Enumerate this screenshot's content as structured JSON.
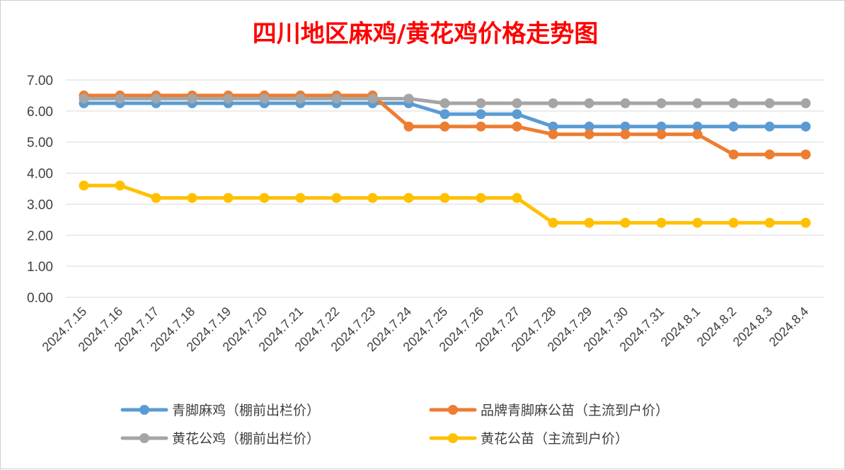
{
  "chart_data": {
    "type": "line",
    "title": "四川地区麻鸡/黄花鸡价格走势图",
    "xlabel": "",
    "ylabel": "",
    "ylim": [
      0,
      7
    ],
    "yticks": [
      "0.00",
      "1.00",
      "2.00",
      "3.00",
      "4.00",
      "5.00",
      "6.00",
      "7.00"
    ],
    "grid": true,
    "legend_position": "bottom",
    "categories": [
      "2024.7.15",
      "2024.7.16",
      "2024.7.17",
      "2024.7.18",
      "2024.7.19",
      "2024.7.20",
      "2024.7.21",
      "2024.7.22",
      "2024.7.23",
      "2024.7.24",
      "2024.7.25",
      "2024.7.26",
      "2024.7.27",
      "2024.7.28",
      "2024.7.29",
      "2024.7.30",
      "2024.7.31",
      "2024.8.1",
      "2024.8.2",
      "2024.8.3",
      "2024.8.4"
    ],
    "series": [
      {
        "name": "青脚麻鸡（棚前出栏价）",
        "color": "#5b9bd5",
        "values": [
          6.25,
          6.25,
          6.25,
          6.25,
          6.25,
          6.25,
          6.25,
          6.25,
          6.25,
          6.25,
          5.9,
          5.9,
          5.9,
          5.5,
          5.5,
          5.5,
          5.5,
          5.5,
          5.5,
          5.5,
          5.5
        ]
      },
      {
        "name": "品牌青脚麻公苗（主流到户价）",
        "color": "#ed7d31",
        "values": [
          6.5,
          6.5,
          6.5,
          6.5,
          6.5,
          6.5,
          6.5,
          6.5,
          6.5,
          5.5,
          5.5,
          5.5,
          5.5,
          5.25,
          5.25,
          5.25,
          5.25,
          5.25,
          4.6,
          4.6,
          4.6
        ]
      },
      {
        "name": "黄花公鸡（棚前出栏价）",
        "color": "#a5a5a5",
        "values": [
          6.4,
          6.4,
          6.4,
          6.4,
          6.4,
          6.4,
          6.4,
          6.4,
          6.4,
          6.4,
          6.25,
          6.25,
          6.25,
          6.25,
          6.25,
          6.25,
          6.25,
          6.25,
          6.25,
          6.25,
          6.25
        ]
      },
      {
        "name": "黄花公苗（主流到户价）",
        "color": "#ffc000",
        "values": [
          3.6,
          3.6,
          3.2,
          3.2,
          3.2,
          3.2,
          3.2,
          3.2,
          3.2,
          3.2,
          3.2,
          3.2,
          3.2,
          2.4,
          2.4,
          2.4,
          2.4,
          2.4,
          2.4,
          2.4,
          2.4
        ]
      }
    ]
  }
}
